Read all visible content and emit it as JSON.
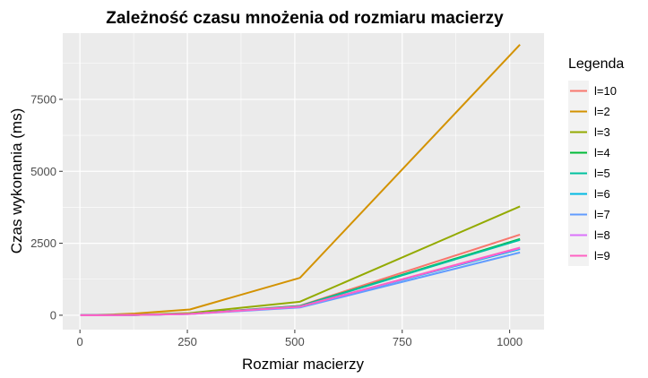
{
  "chart_data": {
    "type": "line",
    "title": "Zależność czasu mnożenia od rozmiaru macierzy",
    "xlabel": "Rozmiar macierzy",
    "ylabel": "Czas wykonania (ms)",
    "xlim": [
      -40,
      1080
    ],
    "ylim": [
      -500,
      9800
    ],
    "x_ticks": [
      0,
      250,
      500,
      750,
      1000
    ],
    "y_ticks": [
      0,
      2500,
      5000,
      7500
    ],
    "grid": true,
    "legend": {
      "title": "Legenda",
      "position": "right"
    },
    "x": [
      1,
      64,
      128,
      256,
      512,
      1024
    ],
    "series": [
      {
        "name": "l=10",
        "color": "#F8766D",
        "values": [
          0,
          2,
          10,
          50,
          330,
          2800
        ]
      },
      {
        "name": "l=2",
        "color": "#D39200",
        "values": [
          0,
          20,
          60,
          200,
          1300,
          9400
        ]
      },
      {
        "name": "l=3",
        "color": "#93AA00",
        "values": [
          0,
          5,
          15,
          75,
          470,
          3780
        ]
      },
      {
        "name": "l=4",
        "color": "#00BA38",
        "values": [
          0,
          2,
          10,
          50,
          320,
          2650
        ]
      },
      {
        "name": "l=5",
        "color": "#00C19F",
        "values": [
          0,
          2,
          10,
          48,
          315,
          2620
        ]
      },
      {
        "name": "l=6",
        "color": "#00B9E3",
        "values": [
          0,
          2,
          9,
          45,
          300,
          2300
        ]
      },
      {
        "name": "l=7",
        "color": "#619CFF",
        "values": [
          0,
          2,
          8,
          42,
          270,
          2180
        ]
      },
      {
        "name": "l=8",
        "color": "#DB72FB",
        "values": [
          0,
          2,
          9,
          45,
          295,
          2330
        ]
      },
      {
        "name": "l=9",
        "color": "#FF61C3",
        "values": [
          0,
          2,
          9,
          46,
          300,
          2350
        ]
      }
    ]
  }
}
